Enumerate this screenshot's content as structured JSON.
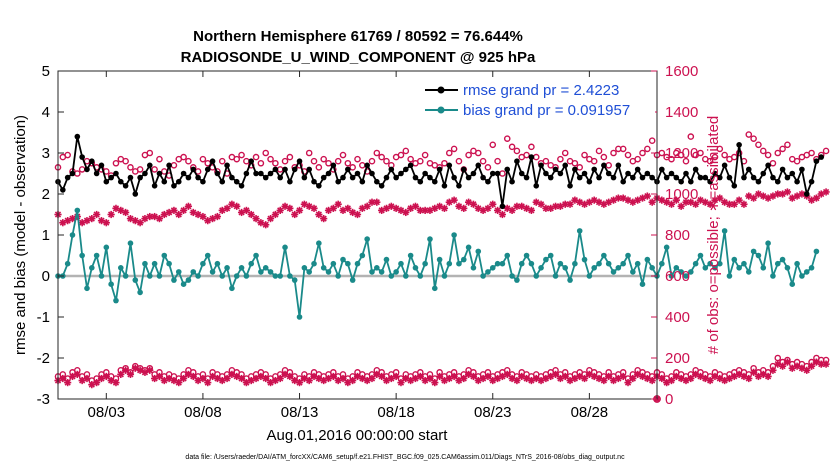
{
  "chart_data": {
    "type": "line",
    "title_line1": "Northern Hemisphere 61769 / 80592 = 76.644%",
    "title_line2": "RADIOSONDE_U_WIND_COMPONENT @ 925 hPa",
    "xlabel": "Aug.01,2016 00:00:00 start",
    "ylabel_left": "rmse and bias (model - observation)",
    "ylabel_right": "# of obs: o=possible; ∗=assimilated",
    "footnote": "data file: /Users/raeder/DAI/ATM_forcXX/CAM6_setup/f.e21.FHIST_BGC.f09_025.CAM6assim.011/Diags_NTrS_2016-08/obs_diag_output.nc",
    "x_range": [
      0.5,
      31.5
    ],
    "ylim_left": [
      -3,
      5
    ],
    "ylim_right": [
      0,
      1600
    ],
    "x_ticks": [
      {
        "x": 3,
        "label": "08/03"
      },
      {
        "x": 8,
        "label": "08/08"
      },
      {
        "x": 13,
        "label": "08/13"
      },
      {
        "x": 18,
        "label": "08/18"
      },
      {
        "x": 23,
        "label": "08/23"
      },
      {
        "x": 28,
        "label": "08/28"
      }
    ],
    "y_ticks_left": [
      "-3",
      "-2",
      "-1",
      "0",
      "1",
      "2",
      "3",
      "4",
      "5"
    ],
    "y_ticks_right": [
      "0",
      "200",
      "400",
      "600",
      "800",
      "1000",
      "1200",
      "1400",
      "1600"
    ],
    "time_step_days": 0.25,
    "colors": {
      "rmse": "#000000",
      "bias": "#1a8a8a",
      "obs": "#cc1150",
      "zero_line": "#b3b3b3",
      "legend_text": "#1f4fd6"
    },
    "legend": {
      "rmse_label": "rmse grand pr = 2.4223",
      "bias_label": "bias grand pr = 0.091957"
    },
    "series": [
      {
        "name": "rmse",
        "x_start": 0.5,
        "values": [
          2.3,
          2.1,
          2.4,
          2.5,
          3.4,
          2.9,
          2.6,
          2.8,
          2.5,
          2.7,
          2.3,
          2.4,
          2.5,
          2.3,
          2.2,
          2.4,
          2.0,
          2.4,
          2.5,
          2.7,
          2.2,
          2.5,
          2.3,
          2.7,
          2.2,
          2.3,
          2.5,
          2.4,
          2.6,
          2.4,
          2.3,
          2.6,
          2.8,
          2.5,
          2.3,
          2.7,
          2.4,
          2.3,
          2.2,
          2.5,
          2.8,
          2.5,
          2.5,
          2.4,
          2.5,
          2.6,
          2.4,
          2.6,
          2.3,
          2.6,
          2.8,
          2.4,
          2.6,
          2.3,
          2.2,
          2.4,
          2.5,
          2.7,
          2.3,
          2.4,
          2.6,
          2.4,
          2.5,
          2.3,
          2.7,
          2.5,
          2.3,
          2.2,
          2.4,
          2.6,
          2.4,
          2.5,
          2.6,
          2.7,
          2.4,
          2.3,
          2.5,
          2.4,
          2.3,
          2.6,
          2.2,
          2.7,
          2.4,
          2.2,
          2.6,
          2.4,
          2.5,
          2.7,
          2.4,
          2.3,
          2.5,
          2.5,
          1.7,
          2.6,
          2.3,
          2.8,
          2.5,
          2.4,
          2.9,
          2.2,
          2.7,
          2.5,
          2.4,
          2.6,
          2.5,
          2.7,
          2.2,
          2.6,
          2.4,
          2.5,
          2.3,
          2.6,
          2.4,
          2.7,
          2.5,
          2.4,
          2.7,
          2.3,
          2.5,
          2.4,
          2.6,
          2.4,
          2.5,
          2.4,
          2.3,
          2.6,
          2.4,
          2.5,
          2.4,
          2.3,
          2.5,
          2.3,
          2.6,
          2.4,
          2.4,
          2.3,
          2.5,
          2.4,
          2.7,
          2.4,
          2.2,
          3.2,
          2.4,
          2.6,
          2.4,
          2.3,
          2.5,
          2.7,
          2.4,
          2.3,
          2.6,
          2.4,
          2.5,
          2.3,
          2.6,
          2.0,
          2.3,
          2.8,
          2.9
        ]
      },
      {
        "name": "bias",
        "x_start": 0.5,
        "values": [
          0.0,
          0.0,
          0.3,
          1.0,
          1.6,
          0.5,
          -0.3,
          0.2,
          0.5,
          0.0,
          0.7,
          -0.2,
          -0.6,
          0.2,
          0.0,
          0.8,
          -0.1,
          -0.4,
          0.3,
          0.0,
          0.3,
          0.0,
          0.5,
          0.3,
          -0.1,
          0.1,
          -0.2,
          -0.1,
          0.1,
          0.0,
          0.3,
          0.5,
          0.1,
          0.3,
          0.0,
          0.2,
          -0.3,
          0.0,
          0.2,
          0.0,
          0.3,
          0.5,
          0.1,
          0.2,
          0.1,
          0.0,
          0.0,
          0.7,
          0.0,
          -0.1,
          -1.0,
          0.2,
          0.1,
          0.3,
          0.8,
          0.2,
          0.1,
          0.3,
          0.0,
          0.4,
          0.3,
          -0.1,
          0.3,
          0.5,
          0.9,
          0.1,
          0.2,
          0.1,
          0.4,
          0.0,
          0.1,
          0.3,
          0.0,
          0.5,
          0.2,
          0.0,
          0.3,
          0.9,
          -0.3,
          0.4,
          0.0,
          0.3,
          1.0,
          0.3,
          0.4,
          0.7,
          0.2,
          0.6,
          0.0,
          0.1,
          0.2,
          0.3,
          0.3,
          0.5,
          0.0,
          -0.1,
          0.3,
          0.5,
          0.3,
          0.0,
          0.2,
          0.4,
          0.5,
          0.0,
          0.3,
          0.2,
          -0.1,
          0.3,
          1.1,
          0.4,
          0.0,
          0.2,
          0.3,
          0.5,
          0.3,
          0.1,
          0.2,
          0.3,
          0.5,
          0.1,
          0.3,
          -0.2,
          0.4,
          0.2,
          0.0,
          0.3,
          0.7,
          0.0,
          0.2,
          0.1,
          0.0,
          0.1,
          0.3,
          0.5,
          0.2,
          0.3,
          0.2,
          0.3,
          1.1,
          0.0,
          0.4,
          0.2,
          0.3,
          0.1,
          0.6,
          0.5,
          0.2,
          0.8,
          0.0,
          0.3,
          0.4,
          0.2,
          -0.2,
          0.3,
          0.0,
          0.1,
          0.2,
          0.6
        ]
      },
      {
        "name": "possible_upper",
        "x_start": 0.5,
        "values": [
          1130,
          1180,
          1190,
          1110,
          1100,
          1120,
          1160,
          1150,
          1130,
          1120,
          1110,
          1090,
          1150,
          1170,
          1160,
          1130,
          1110,
          1120,
          1190,
          1200,
          1120,
          1170,
          1110,
          1090,
          1140,
          1170,
          1180,
          1160,
          1130,
          1110,
          1170,
          1150,
          1130,
          1110,
          1160,
          1100,
          1180,
          1170,
          1190,
          1160,
          1140,
          1180,
          1150,
          1200,
          1170,
          1150,
          1120,
          1160,
          1180,
          1130,
          1140,
          1110,
          1200,
          1160,
          1130,
          1170,
          1150,
          1120,
          1160,
          1190,
          1150,
          1130,
          1170,
          1140,
          1110,
          1160,
          1200,
          1180,
          1160,
          1140,
          1180,
          1190,
          1210,
          1170,
          1150,
          1160,
          1190,
          1150,
          1140,
          1130,
          1150,
          1200,
          1220,
          1160,
          1120,
          1190,
          1210,
          1200,
          1160,
          1130,
          1240,
          1160,
          1100,
          1270,
          1230,
          1210,
          1180,
          1190,
          1230,
          1180,
          1150,
          1160,
          1140,
          1130,
          1170,
          1200,
          1160,
          1150,
          1130,
          1190,
          1170,
          1160,
          1210,
          1180,
          1140,
          1200,
          1220,
          1220,
          1190,
          1160,
          1170,
          1200,
          1220,
          1260,
          1190,
          1200,
          1180,
          1170,
          1200,
          1190,
          1160,
          1280,
          1190,
          1200,
          1170,
          1160,
          1180,
          1220,
          1190,
          1170,
          1180,
          1200,
          1160,
          1290,
          1270,
          1240,
          1210,
          1190,
          1150,
          1200,
          1220,
          1240,
          1170,
          1160,
          1180,
          1190,
          1200,
          1170,
          1190,
          1210
        ]
      },
      {
        "name": "assimilated_upper",
        "x_start": 0.5,
        "values": [
          900,
          860,
          870,
          880,
          890,
          860,
          870,
          880,
          900,
          870,
          860,
          900,
          930,
          920,
          910,
          880,
          870,
          860,
          880,
          890,
          890,
          880,
          900,
          910,
          920,
          900,
          920,
          940,
          910,
          900,
          890,
          870,
          880,
          890,
          920,
          930,
          950,
          940,
          910,
          920,
          900,
          880,
          860,
          850,
          880,
          900,
          920,
          940,
          930,
          900,
          920,
          950,
          940,
          930,
          900,
          880,
          920,
          930,
          950,
          920,
          930,
          910,
          900,
          930,
          940,
          960,
          960,
          920,
          930,
          940,
          930,
          920,
          910,
          930,
          940,
          920,
          920,
          920,
          930,
          940,
          930,
          960,
          970,
          940,
          930,
          960,
          950,
          930,
          920,
          930,
          950,
          920,
          900,
          930,
          920,
          940,
          940,
          930,
          920,
          960,
          950,
          930,
          930,
          940,
          940,
          950,
          950,
          970,
          960,
          950,
          960,
          970,
          960,
          950,
          960,
          970,
          980,
          980,
          970,
          960,
          970,
          980,
          990,
          960,
          980,
          970,
          960,
          950,
          970,
          940,
          960,
          960,
          950,
          970,
          960,
          950,
          970,
          980,
          960,
          950,
          950,
          970,
          950,
          990,
          980,
          1000,
          990,
          980,
          990,
          1000,
          1000,
          1010,
          980,
          990,
          1000,
          990,
          970,
          980,
          1000,
          1010
        ]
      },
      {
        "name": "possible_lower",
        "x_start": 0.5,
        "values": [
          110,
          120,
          100,
          130,
          140,
          110,
          120,
          90,
          100,
          120,
          130,
          110,
          100,
          140,
          150,
          130,
          160,
          150,
          140,
          150,
          120,
          130,
          110,
          120,
          110,
          100,
          120,
          140,
          130,
          110,
          120,
          100,
          130,
          120,
          110,
          120,
          140,
          130,
          120,
          100,
          110,
          120,
          130,
          120,
          100,
          110,
          120,
          140,
          130,
          110,
          100,
          120,
          110,
          130,
          120,
          110,
          120,
          130,
          110,
          120,
          100,
          110,
          130,
          120,
          110,
          120,
          140,
          130,
          110,
          120,
          130,
          100,
          120,
          110,
          120,
          130,
          110,
          120,
          100,
          130,
          110,
          120,
          130,
          110,
          120,
          140,
          130,
          110,
          120,
          130,
          110,
          120,
          130,
          140,
          120,
          110,
          130,
          120,
          110,
          120,
          110,
          120,
          130,
          140,
          120,
          130,
          110,
          120,
          130,
          120,
          140,
          130,
          120,
          110,
          130,
          110,
          120,
          130,
          100,
          120,
          140,
          130,
          120,
          110,
          130,
          120,
          100,
          110,
          130,
          120,
          110,
          120,
          140,
          130,
          120,
          110,
          130,
          120,
          110,
          120,
          130,
          140,
          130,
          120,
          150,
          130,
          140,
          130,
          160,
          200,
          180,
          190,
          170,
          180,
          170,
          160,
          180,
          200,
          190,
          190
        ]
      },
      {
        "name": "assimilated_lower",
        "x_start": 0.5,
        "values": [
          90,
          100,
          80,
          110,
          120,
          90,
          100,
          70,
          80,
          100,
          110,
          90,
          80,
          120,
          140,
          120,
          150,
          140,
          130,
          140,
          100,
          110,
          90,
          100,
          90,
          80,
          100,
          120,
          110,
          90,
          100,
          80,
          110,
          100,
          90,
          100,
          120,
          110,
          100,
          80,
          90,
          100,
          110,
          100,
          80,
          90,
          100,
          120,
          110,
          90,
          80,
          100,
          90,
          110,
          100,
          90,
          100,
          110,
          90,
          100,
          80,
          90,
          110,
          100,
          90,
          100,
          120,
          110,
          90,
          100,
          110,
          80,
          100,
          90,
          100,
          110,
          90,
          100,
          80,
          110,
          90,
          100,
          110,
          90,
          100,
          120,
          110,
          90,
          100,
          110,
          90,
          100,
          110,
          120,
          100,
          90,
          110,
          100,
          90,
          100,
          90,
          100,
          110,
          120,
          100,
          110,
          90,
          100,
          110,
          100,
          120,
          110,
          100,
          90,
          110,
          90,
          100,
          110,
          80,
          100,
          120,
          110,
          100,
          90,
          110,
          100,
          80,
          90,
          110,
          100,
          90,
          100,
          120,
          110,
          100,
          90,
          110,
          100,
          90,
          100,
          110,
          120,
          110,
          100,
          130,
          110,
          120,
          110,
          140,
          170,
          160,
          180,
          150,
          160,
          150,
          140,
          160,
          180,
          170,
          170
        ]
      },
      {
        "name": "last_point",
        "x": 31.5,
        "possible": 0,
        "assimilated": 0
      }
    ]
  }
}
